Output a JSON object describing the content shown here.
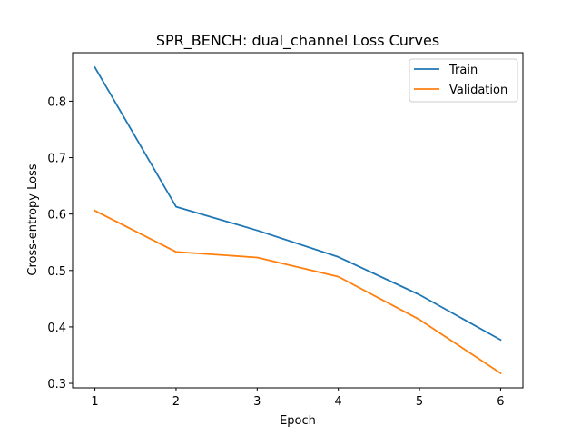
{
  "chart_data": {
    "type": "line",
    "title": "SPR_BENCH: dual_channel Loss Curves",
    "xlabel": "Epoch",
    "ylabel": "Cross-entropy Loss",
    "x": [
      1,
      2,
      3,
      4,
      5,
      6
    ],
    "xlim": [
      0.725,
      6.275
    ],
    "ylim": [
      0.292,
      0.886
    ],
    "xticks": [
      "1",
      "2",
      "3",
      "4",
      "5",
      "6"
    ],
    "yticks": [
      "0.3",
      "0.4",
      "0.5",
      "0.6",
      "0.7",
      "0.8"
    ],
    "grid": false,
    "legend_position": "top-right",
    "series": [
      {
        "name": "Train",
        "color": "#1f77b4",
        "values": [
          0.86,
          0.613,
          0.571,
          0.524,
          0.457,
          0.377
        ]
      },
      {
        "name": "Validation",
        "color": "#ff7f0e",
        "values": [
          0.606,
          0.533,
          0.523,
          0.489,
          0.413,
          0.318
        ]
      }
    ]
  }
}
